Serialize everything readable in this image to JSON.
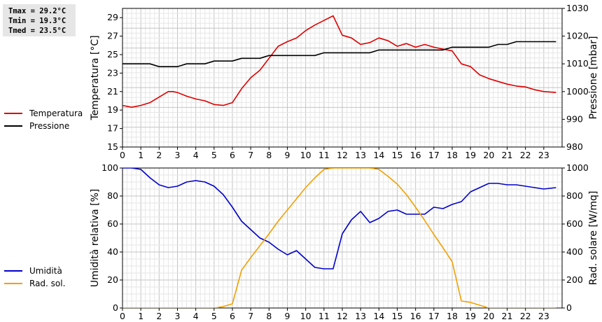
{
  "stats": {
    "tmax": "Tmax = 29.2°C",
    "tmin": "Tmin = 19.3°C",
    "tmed": "Tmed = 23.5°C"
  },
  "legend_top": [
    {
      "label": "Temperatura",
      "color": "#dd0000"
    },
    {
      "label": "Pressione",
      "color": "#000000"
    }
  ],
  "legend_bottom": [
    {
      "label": "Umidità",
      "color": "#0000cc"
    },
    {
      "label": "Rad. sol.",
      "color": "#f0a000"
    }
  ],
  "chart_data": [
    {
      "type": "line",
      "ylabel": "Temperatura [°C]",
      "y2label": "Pressione [mbar]",
      "xlim": [
        0,
        24
      ],
      "ylim": [
        15,
        30
      ],
      "y2lim": [
        980,
        1030
      ],
      "x_ticks": [
        "0",
        "1",
        "2",
        "3",
        "4",
        "5",
        "6",
        "7",
        "8",
        "9",
        "10",
        "11",
        "12",
        "13",
        "14",
        "15",
        "16",
        "17",
        "18",
        "19",
        "20",
        "21",
        "22",
        "23"
      ],
      "y_ticks": [
        "15",
        "17",
        "19",
        "21",
        "23",
        "25",
        "27",
        "29"
      ],
      "y2_ticks": [
        "980",
        "990",
        "1000",
        "1010",
        "1020",
        "1030"
      ],
      "grid": true,
      "series": [
        {
          "name": "Temperatura",
          "axis": "left",
          "color": "#dd0000",
          "x": [
            0,
            0.5,
            1,
            1.5,
            2,
            2.5,
            2.75,
            3,
            3.5,
            4,
            4.5,
            5,
            5.5,
            6,
            6.5,
            7,
            7.5,
            8,
            8.5,
            9,
            9.5,
            10,
            10.5,
            11,
            11.5,
            12,
            12.5,
            13,
            13.5,
            14,
            14.5,
            15,
            15.5,
            16,
            16.5,
            17,
            17.5,
            18,
            18.5,
            19,
            19.5,
            20,
            20.5,
            21,
            21.5,
            22,
            22.5,
            23,
            23.67
          ],
          "values": [
            19.5,
            19.3,
            19.5,
            19.8,
            20.4,
            21.0,
            21.0,
            20.9,
            20.5,
            20.2,
            20.0,
            19.6,
            19.5,
            19.8,
            21.3,
            22.5,
            23.3,
            24.6,
            25.9,
            26.4,
            26.8,
            27.6,
            28.2,
            28.7,
            29.2,
            27.1,
            26.8,
            26.1,
            26.3,
            26.8,
            26.5,
            25.9,
            26.2,
            25.8,
            26.1,
            25.8,
            25.6,
            25.4,
            24.0,
            23.7,
            22.8,
            22.4,
            22.1,
            21.8,
            21.6,
            21.5,
            21.2,
            21.0,
            20.9
          ]
        },
        {
          "name": "Pressione",
          "axis": "right",
          "color": "#000000",
          "x": [
            0,
            1.5,
            2,
            3,
            3.5,
            4.5,
            5,
            6,
            6.5,
            7.5,
            8,
            10.5,
            11,
            13.5,
            14,
            17.5,
            18,
            20,
            20.5,
            21,
            21.5,
            22,
            23.67
          ],
          "values": [
            1010,
            1010,
            1009,
            1009,
            1010,
            1010,
            1011,
            1011,
            1012,
            1012,
            1013,
            1013,
            1014,
            1014,
            1015,
            1015,
            1016,
            1016,
            1017,
            1017,
            1018,
            1018,
            1018
          ]
        }
      ]
    },
    {
      "type": "line",
      "ylabel": "Umidità relativa [%]",
      "y2label": "Rad. solare [W/mq]",
      "xlim": [
        0,
        24
      ],
      "ylim": [
        0,
        100
      ],
      "y2lim": [
        0,
        1000
      ],
      "x_ticks": [
        "0",
        "1",
        "2",
        "3",
        "4",
        "5",
        "6",
        "7",
        "8",
        "9",
        "10",
        "11",
        "12",
        "13",
        "14",
        "15",
        "16",
        "17",
        "18",
        "19",
        "20",
        "21",
        "22",
        "23"
      ],
      "y_ticks": [
        "0",
        "20",
        "40",
        "60",
        "80",
        "100"
      ],
      "y2_ticks": [
        "0",
        "200",
        "400",
        "600",
        "800",
        "1000"
      ],
      "grid": true,
      "series": [
        {
          "name": "Umidità",
          "axis": "left",
          "color": "#0000cc",
          "x": [
            0,
            0.5,
            1,
            1.5,
            2,
            2.5,
            3,
            3.5,
            4,
            4.5,
            5,
            5.5,
            6,
            6.5,
            7,
            7.5,
            8,
            8.5,
            9,
            9.5,
            10,
            10.5,
            11,
            11.5,
            12,
            12.5,
            13,
            13.5,
            14,
            14.5,
            15,
            15.5,
            16,
            16.5,
            17,
            17.5,
            18,
            18.5,
            19,
            19.5,
            20,
            20.5,
            21,
            21.5,
            22,
            22.5,
            23,
            23.67
          ],
          "values": [
            100,
            100,
            99,
            93,
            88,
            86,
            87,
            90,
            91,
            90,
            87,
            81,
            72,
            62,
            56,
            50,
            47,
            42,
            38,
            41,
            35,
            29,
            28,
            28,
            53,
            63,
            69,
            61,
            64,
            69,
            70,
            67,
            67,
            67,
            72,
            71,
            74,
            76,
            83,
            86,
            89,
            89,
            88,
            88,
            87,
            86,
            85,
            86
          ]
        },
        {
          "name": "Rad. sol.",
          "axis": "right",
          "color": "#f0a000",
          "x": [
            0,
            5,
            5.5,
            6,
            6.5,
            7,
            7.5,
            8,
            8.5,
            9,
            9.5,
            10,
            10.5,
            11,
            11.5,
            12,
            13,
            13.5,
            14,
            14.5,
            15,
            15.5,
            16,
            16.5,
            17,
            17.5,
            18,
            18.5,
            19,
            19.5,
            20,
            20.5,
            21,
            23.67
          ],
          "values": [
            0,
            0,
            10,
            30,
            270,
            360,
            445,
            530,
            620,
            700,
            780,
            860,
            930,
            990,
            1000,
            1000,
            1000,
            1000,
            990,
            940,
            885,
            810,
            720,
            625,
            525,
            430,
            330,
            50,
            40,
            20,
            0,
            0,
            0,
            0
          ]
        }
      ]
    }
  ]
}
